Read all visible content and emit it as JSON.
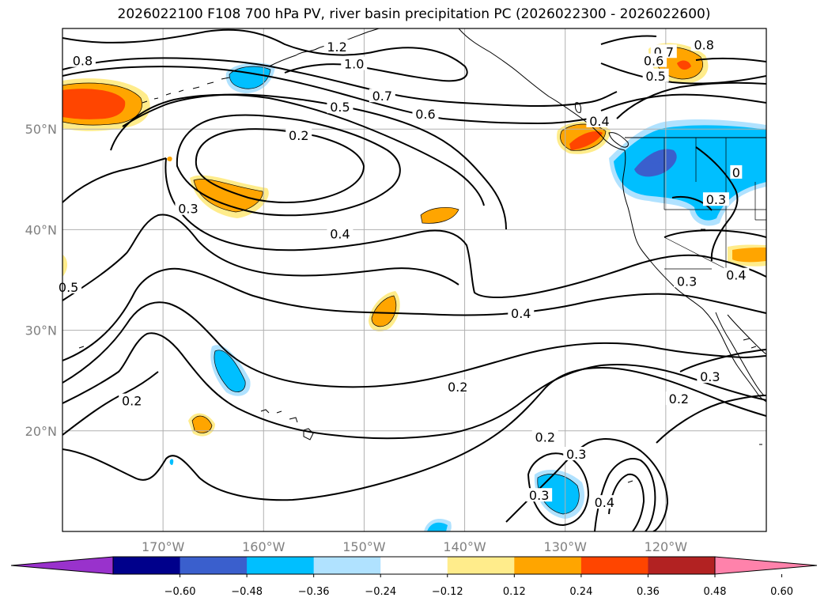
{
  "title": "2026022100 F108 700 hPa PV, river basin precipitation PC (2026022300 - 2026022600)",
  "lon_ticks": [
    {
      "lon": -170,
      "label": "170°W"
    },
    {
      "lon": -160,
      "label": "160°W"
    },
    {
      "lon": -150,
      "label": "150°W"
    },
    {
      "lon": -140,
      "label": "140°W"
    },
    {
      "lon": -130,
      "label": "130°W"
    },
    {
      "lon": -120,
      "label": "120°W"
    }
  ],
  "lat_ticks": [
    {
      "lat": 50,
      "label": "50°N"
    },
    {
      "lat": 40,
      "label": "40°N"
    },
    {
      "lat": 30,
      "label": "30°N"
    },
    {
      "lat": 20,
      "label": "20°N"
    }
  ],
  "map_extent": {
    "lon_min": -180,
    "lon_max": -110,
    "lat_min": 10,
    "lat_max": 60
  },
  "contour_labels": [
    {
      "text": "0.8",
      "lon": -178,
      "lat": 56.8
    },
    {
      "text": "1.2",
      "lon": -152.7,
      "lat": 58.2
    },
    {
      "text": "1.0",
      "lon": -151,
      "lat": 56.5
    },
    {
      "text": "0.7",
      "lon": -148.2,
      "lat": 53.3
    },
    {
      "text": "0.5",
      "lon": -152.4,
      "lat": 52.2
    },
    {
      "text": "0.6",
      "lon": -143.9,
      "lat": 51.5
    },
    {
      "text": "0.2",
      "lon": -156.5,
      "lat": 49.4
    },
    {
      "text": "0.3",
      "lon": -167.5,
      "lat": 42.1
    },
    {
      "text": "0.4",
      "lon": -152.4,
      "lat": 39.6
    },
    {
      "text": "0.5",
      "lon": -179.4,
      "lat": 34.3
    },
    {
      "text": "0.4",
      "lon": -134.4,
      "lat": 31.7
    },
    {
      "text": "0.2",
      "lon": -173.1,
      "lat": 23.0
    },
    {
      "text": "0.2",
      "lon": -140.7,
      "lat": 24.4
    },
    {
      "text": "0.2",
      "lon": -132.0,
      "lat": 19.4
    },
    {
      "text": "0.3",
      "lon": -128.9,
      "lat": 17.7
    },
    {
      "text": "0.3",
      "lon": -132.6,
      "lat": 13.6
    },
    {
      "text": "0.4",
      "lon": -126.1,
      "lat": 12.9
    },
    {
      "text": "0.3",
      "lon": -115.6,
      "lat": 25.4
    },
    {
      "text": "0.2",
      "lon": -118.7,
      "lat": 23.2
    },
    {
      "text": "0.3",
      "lon": -117.9,
      "lat": 34.9
    },
    {
      "text": "0.4",
      "lon": -113.0,
      "lat": 35.5
    },
    {
      "text": "0.3",
      "lon": -115.0,
      "lat": 43.0
    },
    {
      "text": "0.7",
      "lon": -120.2,
      "lat": 57.7
    },
    {
      "text": "0.8",
      "lon": -116.2,
      "lat": 58.4
    },
    {
      "text": "0.6",
      "lon": -121.2,
      "lat": 56.8
    },
    {
      "text": "0.5",
      "lon": -121.0,
      "lat": 55.3
    },
    {
      "text": "0.4",
      "lon": -126.6,
      "lat": 50.8
    },
    {
      "text": "0",
      "lon": -113.0,
      "lat": 45.7
    }
  ],
  "colorbar": {
    "colors": [
      "#9932cc",
      "#00008b",
      "#3a5fcd",
      "#00bfff",
      "#b0e2ff",
      "#ffffff",
      "#ffec8b",
      "#ffa500",
      "#ff4500",
      "#b22222",
      "#ff82ab"
    ],
    "tick_labels": [
      "−0.60",
      "−0.48",
      "−0.36",
      "−0.24",
      "−0.12",
      "0.12",
      "0.24",
      "0.36",
      "0.48",
      "0.60"
    ]
  }
}
